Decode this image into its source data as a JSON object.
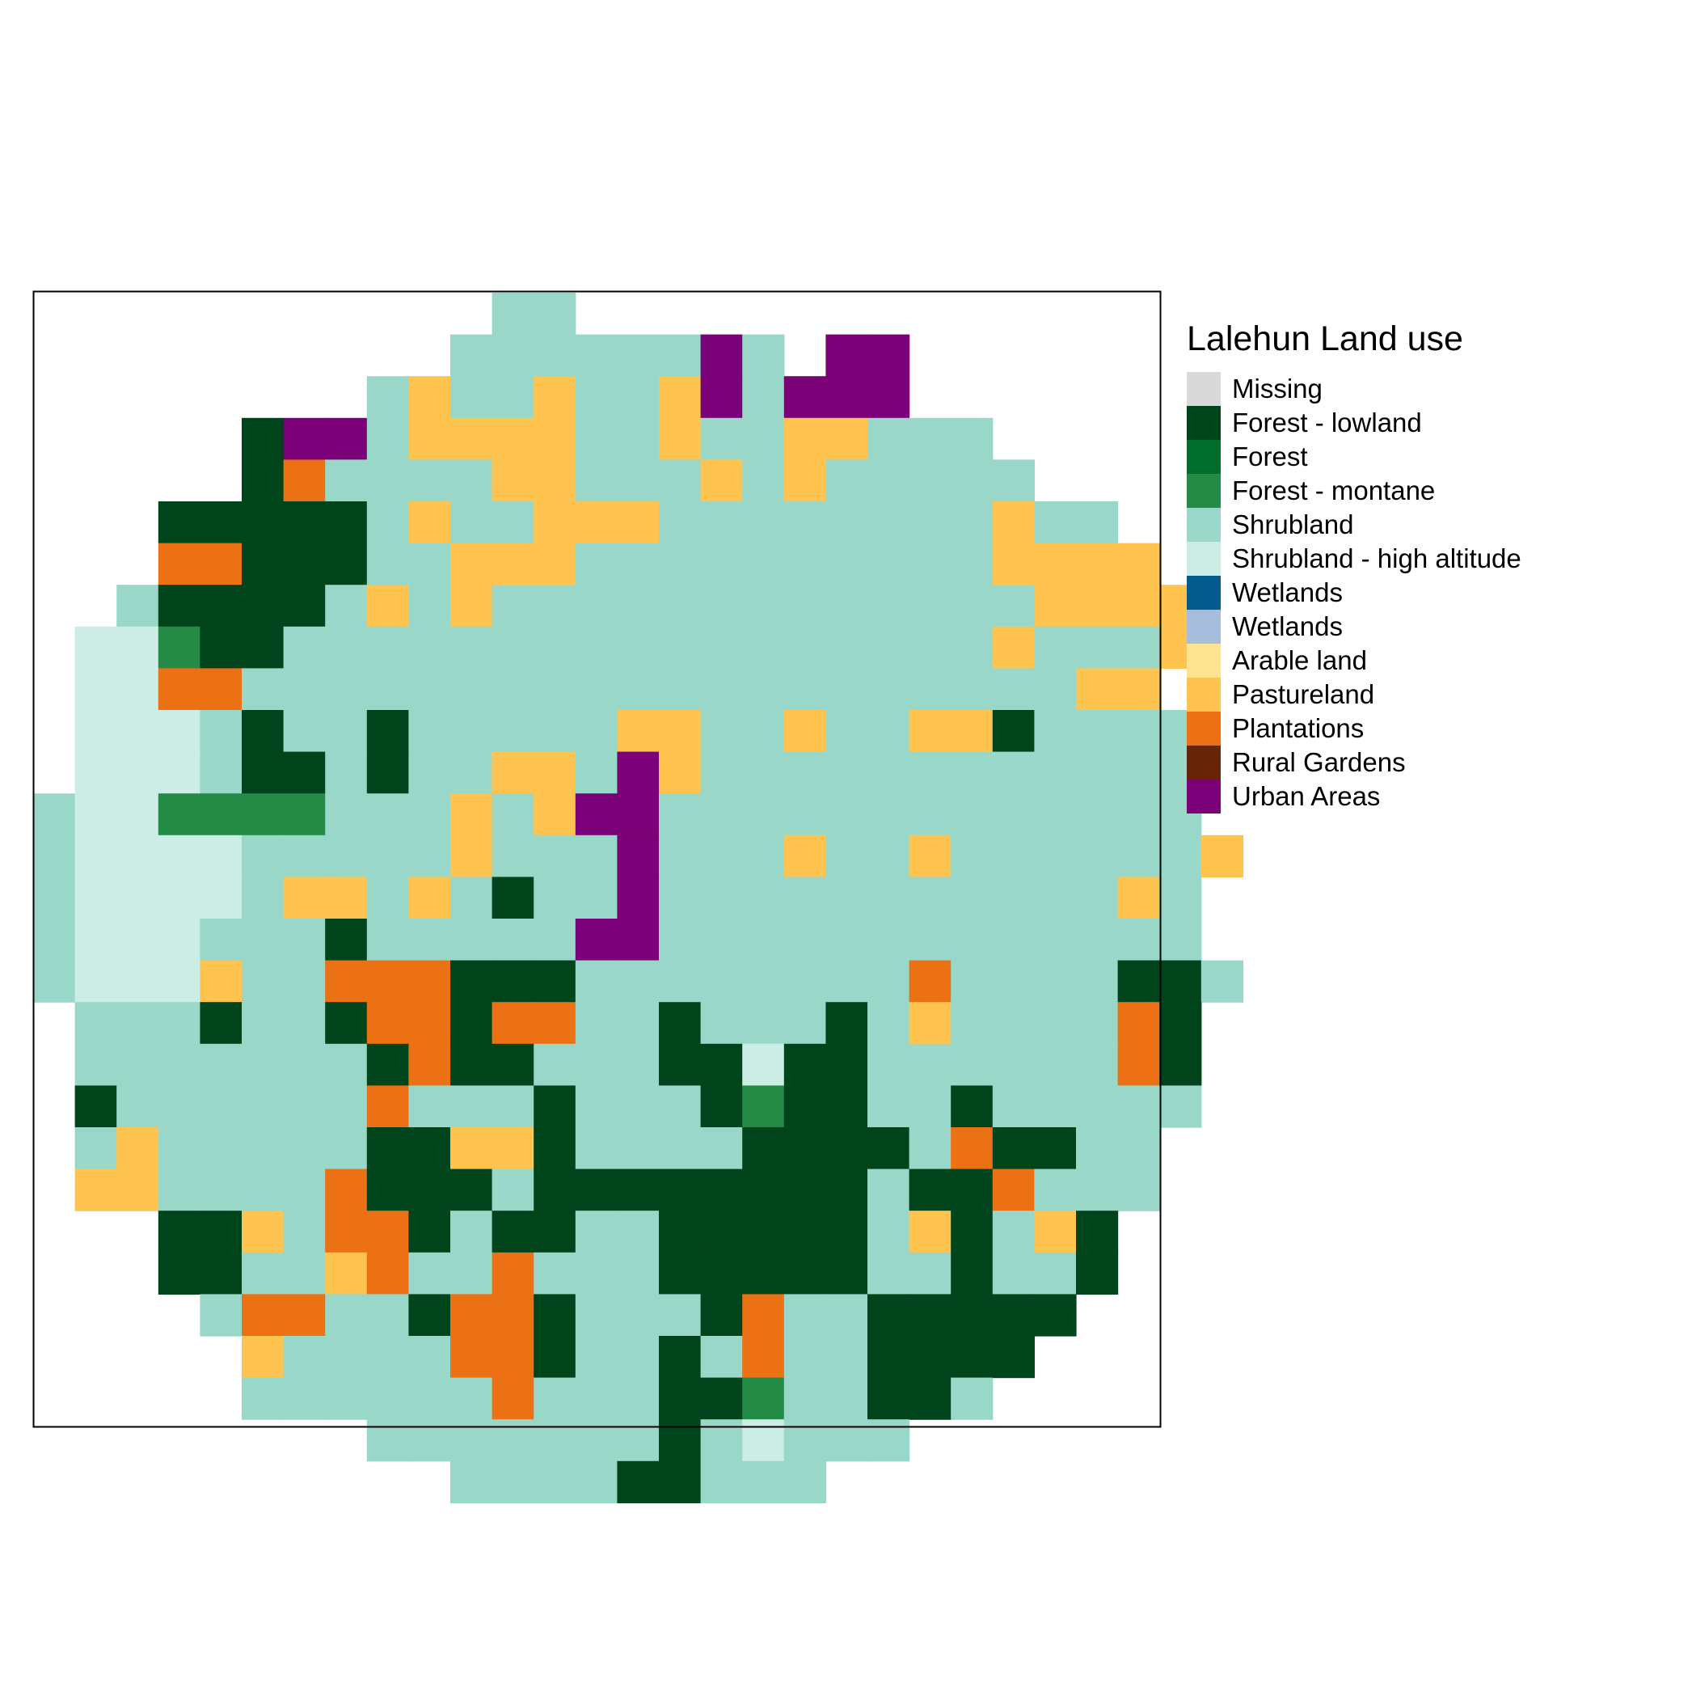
{
  "legend": {
    "title": "Lalehun Land use",
    "classes": [
      {
        "code": "M",
        "label": "Missing",
        "color": "#d9d9d9"
      },
      {
        "code": "F",
        "label": "Forest - lowland",
        "color": "#00441b"
      },
      {
        "code": "G",
        "label": "Forest",
        "color": "#006d2c"
      },
      {
        "code": "T",
        "label": "Forest - montane",
        "color": "#238b45"
      },
      {
        "code": "S",
        "label": "Shrubland",
        "color": "#99d8c9"
      },
      {
        "code": "H",
        "label": "Shrubland - high altitude",
        "color": "#ccece6"
      },
      {
        "code": "W",
        "label": "Wetlands",
        "color": "#045a8d"
      },
      {
        "code": "V",
        "label": "Wetlands",
        "color": "#a6bddb"
      },
      {
        "code": "A",
        "label": "Arable land",
        "color": "#fee391"
      },
      {
        "code": "P",
        "label": "Pastureland",
        "color": "#fec44f"
      },
      {
        "code": "O",
        "label": "Plantations",
        "color": "#ec7014"
      },
      {
        "code": "R",
        "label": "Rural Gardens",
        "color": "#662506"
      },
      {
        "code": "U",
        "label": "Urban Areas",
        "color": "#7a0177"
      }
    ]
  },
  "map_data": {
    "grid": [
      "...........SS..............",
      "..........SSSSSSUS.UU.......",
      "........SPSSPSSPUSUUU.......",
      ".....FUUSPPPPSSPSSPPSSS.....",
      ".....FOSSSSPPSSSPSPSSSSS....",
      "...FFFFFSPSSPPPSSSSSSSSPSS..",
      "...OOFFFSSPPPSSSSSSSSSSPPPP.",
      "..SFFFFSPSPSSSSSSSSSSSSSPPPP",
      ".HHTFFSSSSSSSSSSSSSSSSSPSSSP",
      ".HHOOSSSSSSSSSSSSSSSSSSSSPP.",
      ".HHHSFSSFSSSSSPPSSPSSPPFSSSS",
      ".HHHSFFSFSSPPSUPSSSSSSSSSSSS",
      "SHHTTTTSSSPSPUUSSSSSSSSSSSSS",
      "SHHHHSSSSSPSSSUSSSPSSPSSSSSSP",
      "SHHHHSPPSPSFSSUSSSSSSSSSSSPS",
      "SHHHSSSFSSSSSUUSSSSSSSSSSSSS",
      "SHHHPSSOOOFFFSSSSSSSSOSSSSFFS",
      ".SSSFSSFOOFOOSSFSSSFSPSSSSOF",
      ".SSSSSSSFOFFSSSFFHFFSSSSSSOF",
      ".FSSSSSSOSSSFSSSFTFFSSFSSSSS",
      ".SPSSSSSFFPPFSSSSFFFFSOFFSS.",
      ".PPSSSSOFFFSFFFFFFFFSFFOSSS.",
      "...FFPSOOFSFFSSFFFFFSPFSPF..",
      "...FFSSPOSSOSSSFFFFFSSFSSF..",
      "....SOOSSFOOFSSSFOSSFFFFF...",
      ".....PSSSSOOFSSFSOSSFFFF....",
      ".....SSSSSSOSSSFFTSSFFS.....",
      "........SSSSSSSFSHSSS.......",
      "..........SSSSFFSSS........."
    ]
  }
}
